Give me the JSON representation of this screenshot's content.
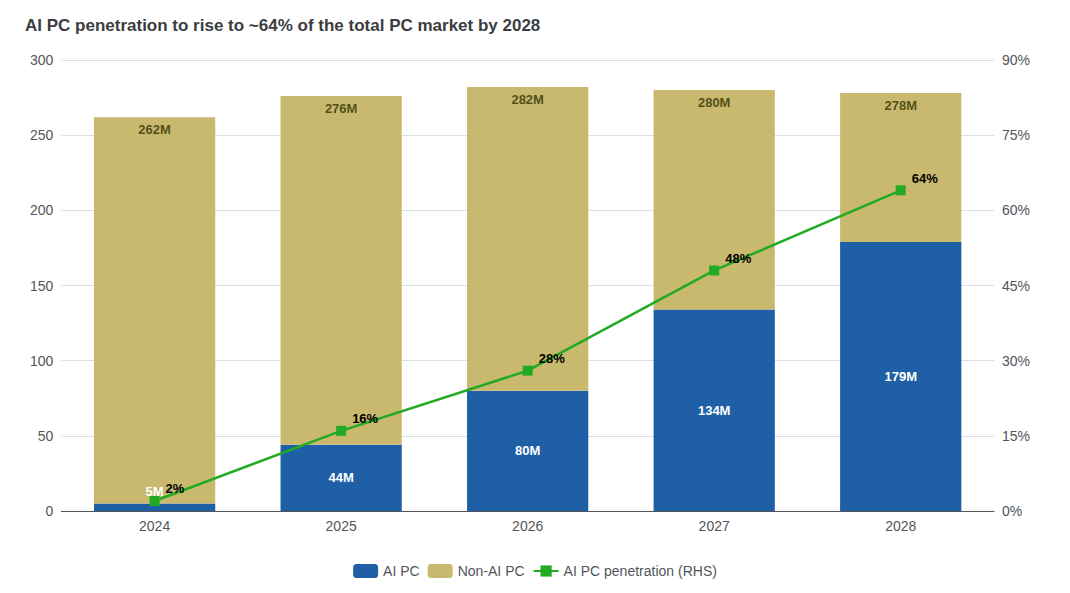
{
  "chart_data": {
    "type": "bar",
    "title": "AI PC penetration to rise to ~64% of the total PC market by 2028",
    "categories": [
      "2024",
      "2025",
      "2026",
      "2027",
      "2028"
    ],
    "stacked": true,
    "series": [
      {
        "name": "AI PC",
        "color": "#1f5fa6",
        "values": [
          5,
          44,
          80,
          134,
          179
        ],
        "data_labels": true,
        "value_labels": [
          "5M",
          "44M",
          "80M",
          "134M",
          "179M"
        ]
      },
      {
        "name": "Non-AI PC",
        "color": "#c8b96e",
        "values": [
          257,
          232,
          202,
          146,
          99
        ]
      },
      {
        "name": "AI PC penetration (RHS)",
        "type": "line",
        "axis": "y2",
        "color": "#22aa22",
        "marker": "square",
        "values": [
          2,
          16,
          28,
          48,
          64
        ],
        "data_labels": true,
        "value_labels": [
          "2%",
          "16%",
          "28%",
          "48%",
          "64%"
        ]
      }
    ],
    "totals": [
      262,
      276,
      282,
      280,
      278
    ],
    "total_labels": [
      "262M",
      "276M",
      "282M",
      "280M",
      "278M"
    ],
    "ylim": [
      0,
      300
    ],
    "yticks": [
      0,
      50,
      100,
      150,
      200,
      250,
      300
    ],
    "y2lim": [
      0,
      90
    ],
    "y2ticks": [
      {
        "value": 0,
        "label": "0%"
      },
      {
        "value": 15,
        "label": "15%"
      },
      {
        "value": 30,
        "label": "30%"
      },
      {
        "value": 45,
        "label": "45%"
      },
      {
        "value": 60,
        "label": "60%"
      },
      {
        "value": 75,
        "label": "75%"
      },
      {
        "value": 90,
        "label": "90%"
      }
    ],
    "grid": true,
    "legend": "bottom"
  }
}
